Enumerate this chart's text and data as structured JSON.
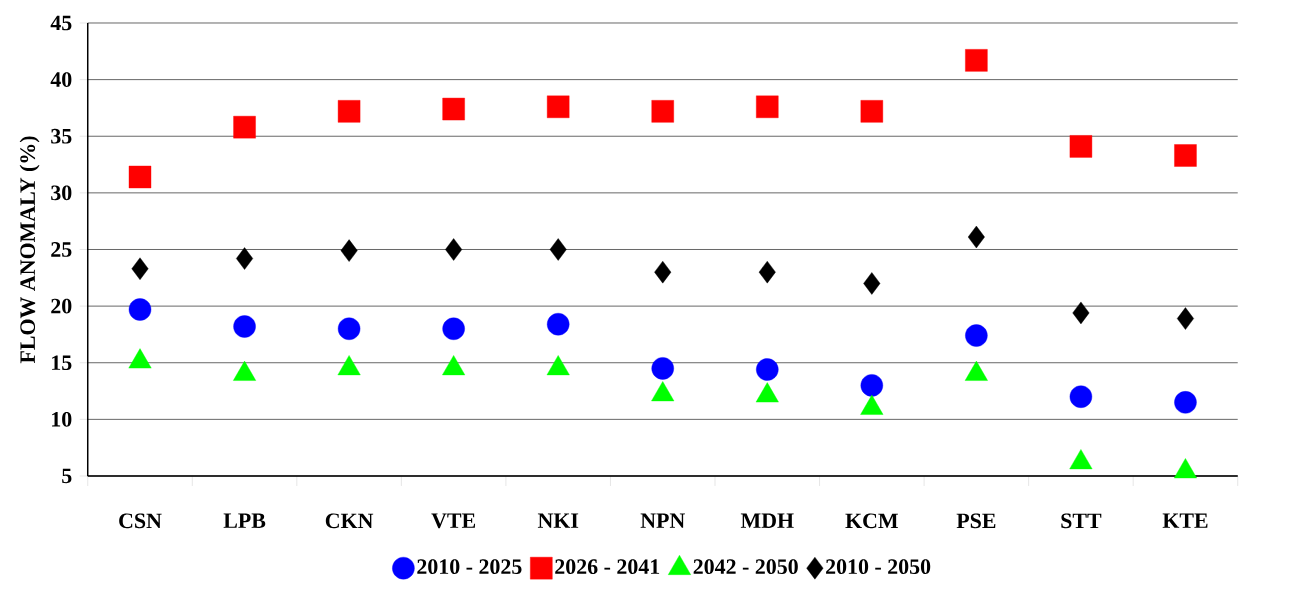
{
  "chart_data": {
    "type": "scatter",
    "ylabel": "FLOW ANOMALY (%)",
    "categories": [
      "CSN",
      "LPB",
      "CKN",
      "VTE",
      "NKI",
      "NPN",
      "MDH",
      "KCM",
      "PSE",
      "STT",
      "KTE"
    ],
    "series": [
      {
        "name": "2010 - 2025",
        "color": "#0000ff",
        "marker": "circle",
        "values": [
          19.7,
          18.2,
          18.0,
          18.0,
          18.4,
          14.5,
          14.4,
          13.0,
          17.4,
          12.0,
          11.5
        ]
      },
      {
        "name": "2026 - 2041",
        "color": "#ff0000",
        "marker": "square",
        "values": [
          31.4,
          35.8,
          37.2,
          37.4,
          37.6,
          37.2,
          37.6,
          37.2,
          41.7,
          34.1,
          33.3
        ]
      },
      {
        "name": "2042 - 2050",
        "color": "#00ff00",
        "marker": "triangle",
        "values": [
          15.1,
          14.0,
          14.5,
          14.5,
          14.5,
          12.2,
          12.1,
          11.0,
          14.0,
          6.2,
          5.4
        ]
      },
      {
        "name": "2010 - 2050",
        "color": "#000000",
        "marker": "diamond",
        "values": [
          23.3,
          24.2,
          24.9,
          25.0,
          25.0,
          23.0,
          23.0,
          22.0,
          26.1,
          19.4,
          18.9
        ]
      }
    ],
    "ylim": [
      5,
      45
    ],
    "yticks": [
      5,
      10,
      15,
      20,
      25,
      30,
      35,
      40,
      45
    ],
    "grid": "y",
    "legend": "bottom"
  }
}
